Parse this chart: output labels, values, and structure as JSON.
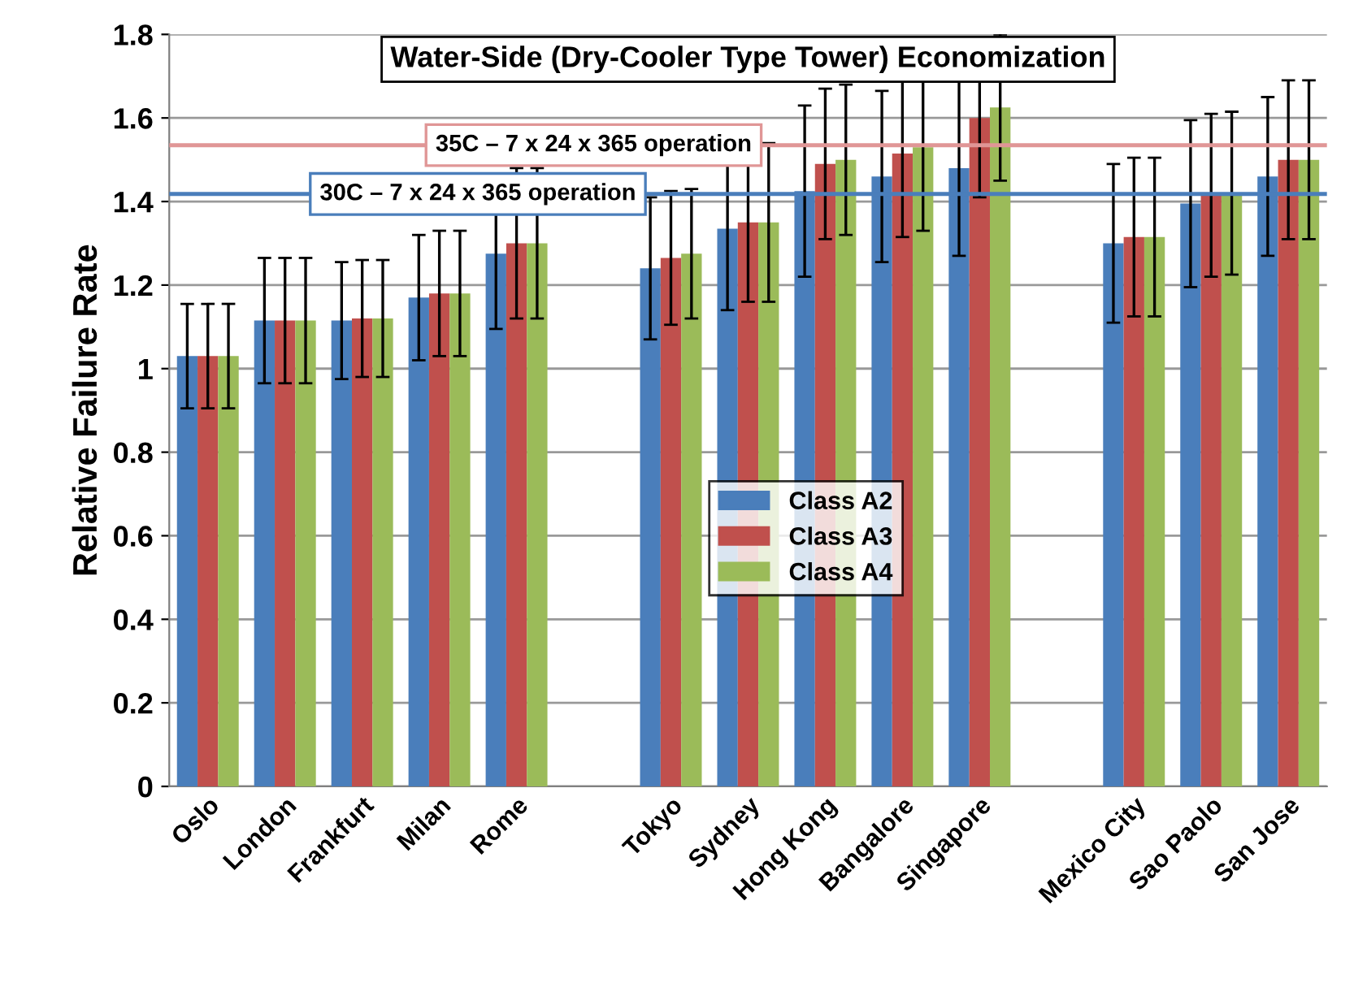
{
  "chart_data": {
    "type": "bar",
    "title": "Water-Side (Dry-Cooler Type Tower) Economization",
    "ylabel": "Relative Failure Rate",
    "categories": [
      "Oslo",
      "London",
      "Frankfurt",
      "Milan",
      "Rome",
      null,
      "Tokyo",
      "Sydney",
      "Hong Kong",
      "Bangalore",
      "Singapore",
      null,
      "Mexico City",
      "Sao Paolo",
      "San Jose"
    ],
    "series": [
      {
        "name": "Class A2",
        "color": "#4a7ebb",
        "values": [
          1.03,
          1.115,
          1.115,
          1.17,
          1.275,
          null,
          1.24,
          1.335,
          1.425,
          1.46,
          1.48,
          null,
          1.3,
          1.395,
          1.46
        ],
        "errors": [
          0.125,
          0.15,
          0.14,
          0.15,
          0.18,
          null,
          0.17,
          0.195,
          0.205,
          0.205,
          0.21,
          null,
          0.19,
          0.2,
          0.19
        ]
      },
      {
        "name": "Class A3",
        "color": "#c0504d",
        "values": [
          1.03,
          1.115,
          1.12,
          1.18,
          1.3,
          null,
          1.265,
          1.35,
          1.49,
          1.515,
          1.6,
          null,
          1.315,
          1.415,
          1.5
        ],
        "errors": [
          0.125,
          0.15,
          0.14,
          0.15,
          0.18,
          null,
          0.16,
          0.19,
          0.18,
          0.2,
          0.19,
          null,
          0.19,
          0.195,
          0.19
        ]
      },
      {
        "name": "Class A4",
        "color": "#9bbb59",
        "values": [
          1.03,
          1.115,
          1.12,
          1.18,
          1.3,
          null,
          1.275,
          1.35,
          1.5,
          1.53,
          1.625,
          null,
          1.315,
          1.42,
          1.5
        ],
        "errors": [
          0.125,
          0.15,
          0.14,
          0.15,
          0.18,
          null,
          0.155,
          0.19,
          0.18,
          0.2,
          0.175,
          null,
          0.19,
          0.195,
          0.19
        ]
      }
    ],
    "ylim": [
      0,
      1.8
    ],
    "yticks": [
      0,
      0.2,
      0.4,
      0.6,
      0.8,
      1,
      1.2,
      1.4,
      1.6,
      1.8
    ],
    "grid": "y",
    "legend": "center",
    "ref_lines": [
      {
        "axis": "y",
        "value": 1.535,
        "label": "35C – 7 x 24 x 365 operation",
        "color": "#e09696"
      },
      {
        "axis": "y",
        "value": 1.418,
        "label": "30C – 7 x 24 x 365 operation",
        "color": "#4a7ebb"
      }
    ]
  }
}
